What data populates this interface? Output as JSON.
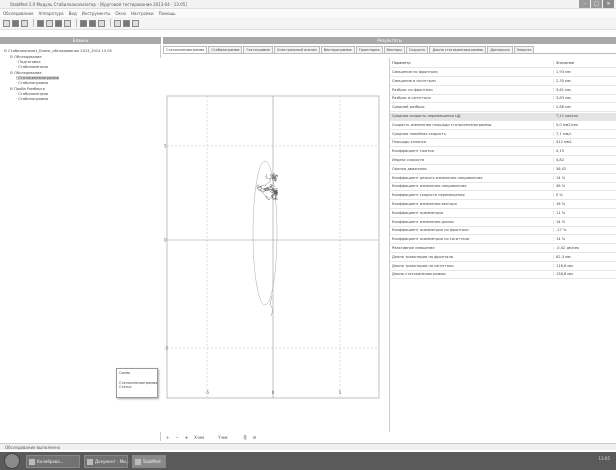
{
  "window": {
    "title": "StabMed 2.0 Модуль Стабилоанализатор - [Круговой тестирование 2013-04 - 13:05]"
  },
  "menu": [
    "Обследование",
    "Аппаратура",
    "Вид",
    "Инструменты",
    "Окно",
    "Настройки",
    "Помощь"
  ],
  "left_panel": {
    "title": "Бланки",
    "tree": [
      {
        "label": "Стабилоанализ_Бланк_обследования 2013_2014 13 05",
        "indent": 0,
        "y": 4
      },
      {
        "label": "Обследование",
        "indent": 1,
        "y": 10
      },
      {
        "label": "Подготовка",
        "indent": 2,
        "y": 15
      },
      {
        "label": "Стабилометрия",
        "indent": 2,
        "y": 20
      },
      {
        "label": "Обследование",
        "indent": 1,
        "y": 26
      },
      {
        "label": "Статокинезиограмма",
        "indent": 2,
        "y": 31,
        "selected": true
      },
      {
        "label": "Стабилограмма",
        "indent": 2,
        "y": 36
      },
      {
        "label": "Проба Ромберга",
        "indent": 1,
        "y": 42
      },
      {
        "label": "Стабилометрия",
        "indent": 2,
        "y": 47
      },
      {
        "label": "Стабилограмма",
        "indent": 2,
        "y": 52
      }
    ]
  },
  "right_panel": {
    "title": "Результаты"
  },
  "tabs": [
    "Статокинезиограмма",
    "Стабилограмма",
    "Гистограмма",
    "Спектральный анализ",
    "Векторограмма",
    "Траектория",
    "Векторы",
    "Скорость",
    "Длина статокинезиограммы",
    "Дисперсия",
    "Энергия"
  ],
  "tooltip": {
    "lines": [
      "Схема",
      "Статокинезиограмма",
      "Статья"
    ]
  },
  "bottom_tools": [
    "X-мм",
    "Y-мм"
  ],
  "table": {
    "headers": [
      "Параметр",
      "Значение"
    ],
    "rows": [
      [
        "Смещение по фронтали",
        "1,93 мм"
      ],
      [
        "Смещение в сагиттали",
        "2,35 мм"
      ],
      [
        "Разброс по фронтали",
        "3,61 мм"
      ],
      [
        "Разброс в сагиттали",
        "3,83 мм"
      ],
      [
        "Средний разброс",
        "2,88 мм"
      ],
      [
        "Средняя скорость перемещения ЦД",
        "7,21 мм/сек"
      ],
      [
        "Скорость изменения площади статокинезиограммы",
        "5,0 мм2/сек"
      ],
      [
        "Средняя линейная скорость",
        "7,1 мм/с"
      ],
      [
        "Площадь эллипса",
        "412 мм2"
      ],
      [
        "Коэффициент сжатия",
        "4,19"
      ],
      [
        "Индекс скорости",
        "4,82"
      ],
      [
        "Оценка движения",
        "36,02"
      ],
      [
        "Коэффициент резкого изменения направления",
        "14 %"
      ],
      [
        "Коэффициент изменения направления",
        "36 %"
      ],
      [
        "Коэффициент скорости перемещения",
        "5 %"
      ],
      [
        "Коэффициент изменения вектора",
        "16 %"
      ],
      [
        "Коэффициент асимметрии",
        "11 %"
      ],
      [
        "Коэффициент изменения длины",
        "14 %"
      ],
      [
        "Коэффициент асимметрии по фронтали",
        "-17 %"
      ],
      [
        "Коэффициент асимметрии по сагиттали",
        "14 %"
      ],
      [
        "Реактивное смещение",
        "-0,42 дм/сек"
      ],
      [
        "Длина траектории по фронтали",
        "62,3 мм"
      ],
      [
        "Длина траектории по сагиттали",
        "116,6 мм"
      ],
      [
        "Длина статокинезиограммы",
        "136,8 мм"
      ]
    ]
  },
  "status": "Обследование выполнено",
  "taskbar": {
    "items": [
      "Калиброва...",
      "Документ - Ми...",
      "StabMed"
    ],
    "clock": "13:05"
  },
  "chart_data": {
    "type": "scatter",
    "title": "",
    "xlabel": "",
    "ylabel": "",
    "x_ticks": [
      "-5",
      "0",
      "5"
    ],
    "y_ticks": [
      "5",
      "0",
      "-5"
    ],
    "description_points": [
      [
        -1.2,
        4.5
      ],
      [
        0.4,
        3.8
      ],
      [
        -0.9,
        2.6
      ],
      [
        1.1,
        1.5
      ],
      [
        -1.6,
        0.6
      ],
      [
        0.7,
        -0.4
      ],
      [
        -0.8,
        -1.5
      ],
      [
        1.3,
        -2.5
      ],
      [
        -1.1,
        -3.2
      ],
      [
        0.2,
        -4.4
      ]
    ]
  }
}
